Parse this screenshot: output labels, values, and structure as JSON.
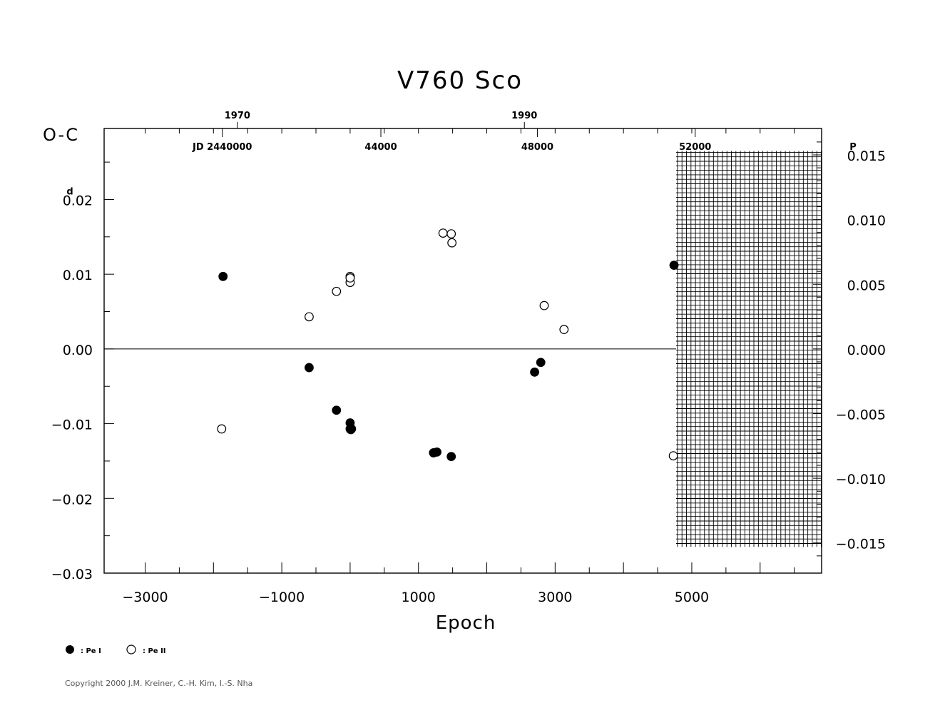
{
  "colors": {
    "axis": "#000000",
    "point": "#000000",
    "background": "#ffffff",
    "copyright": "#555555"
  },
  "copyright": "Copyright 2000 J.M. Kreiner, C.-H. Kim, I.-S. Nha",
  "legend": {
    "placement": "bottom-left",
    "primary_label": ": Pe I",
    "secondary_label": ": Pe II"
  },
  "chart_data": {
    "type": "scatter",
    "title": "V760  Sco",
    "xlabel": "Epoch",
    "ylabel": "O-C",
    "xlim": [
      -3600,
      6900
    ],
    "ylim": [
      -0.03,
      0.0295
    ],
    "grid": false,
    "zero_line": true,
    "x_ticks": [
      -3000,
      -1000,
      1000,
      3000,
      5000
    ],
    "x_tick_labels": [
      "−3000",
      "−1000",
      "1000",
      "3000",
      "5000"
    ],
    "y_ticks": [
      0.02,
      0.01,
      0.0,
      -0.01,
      -0.02,
      -0.03
    ],
    "y_tick_labels": [
      "0.02",
      "0.01",
      "0.00",
      "−0.01",
      "−0.02",
      "−0.03"
    ],
    "y_top_label_prefix": "0",
    "y_top_label_suffix": ".02",
    "y_unit_mark": "d",
    "right_axis": {
      "ticks": [
        0.015,
        0.01,
        0.005,
        0.0,
        -0.005,
        -0.01,
        -0.015
      ],
      "tick_labels": [
        "0.015",
        "0.010",
        "0.005",
        "0.000",
        "−0.005",
        "−0.010",
        "−0.015"
      ],
      "top_label_prefix": "0",
      "top_label_suffix": ".015",
      "unit_mark": "P",
      "units_per_period": 1.7309
    },
    "top_year_ticks": [
      {
        "label": "1970",
        "epoch": -1650
      },
      {
        "label": "1990",
        "epoch": 2550
      }
    ],
    "top_jd_ticks": [
      {
        "label": "JD  2440000",
        "epoch": -1870
      },
      {
        "label": "44000",
        "epoch": 450
      },
      {
        "label": "48000",
        "epoch": 2740
      },
      {
        "label": "52000",
        "epoch": 5050
      }
    ],
    "hatched_region": {
      "x_from": 4770,
      "x_to": 6900,
      "y_from": -0.0265,
      "y_to": 0.0265
    },
    "series": [
      {
        "name": "Pe I",
        "marker": "filled",
        "points": [
          [
            -1860,
            0.0097
          ],
          [
            -600,
            -0.0025
          ],
          [
            -200,
            -0.0082
          ],
          [
            0,
            -0.0099
          ],
          [
            0,
            -0.0107
          ],
          [
            10,
            -0.0108
          ],
          [
            20,
            -0.0107
          ],
          [
            1220,
            -0.0139
          ],
          [
            1270,
            -0.0138
          ],
          [
            1480,
            -0.0144
          ],
          [
            2700,
            -0.0031
          ],
          [
            2790,
            -0.0018
          ],
          [
            4740,
            0.0112
          ]
        ]
      },
      {
        "name": "Pe II",
        "marker": "open",
        "points": [
          [
            -1880,
            -0.0107
          ],
          [
            -600,
            0.0043
          ],
          [
            -200,
            0.0077
          ],
          [
            0,
            0.0089
          ],
          [
            0,
            0.0097
          ],
          [
            0,
            0.0095
          ],
          [
            1360,
            0.0155
          ],
          [
            1480,
            0.0154
          ],
          [
            1490,
            0.0142
          ],
          [
            2840,
            0.0058
          ],
          [
            3130,
            0.0026
          ],
          [
            4730,
            -0.0143
          ]
        ]
      }
    ]
  }
}
